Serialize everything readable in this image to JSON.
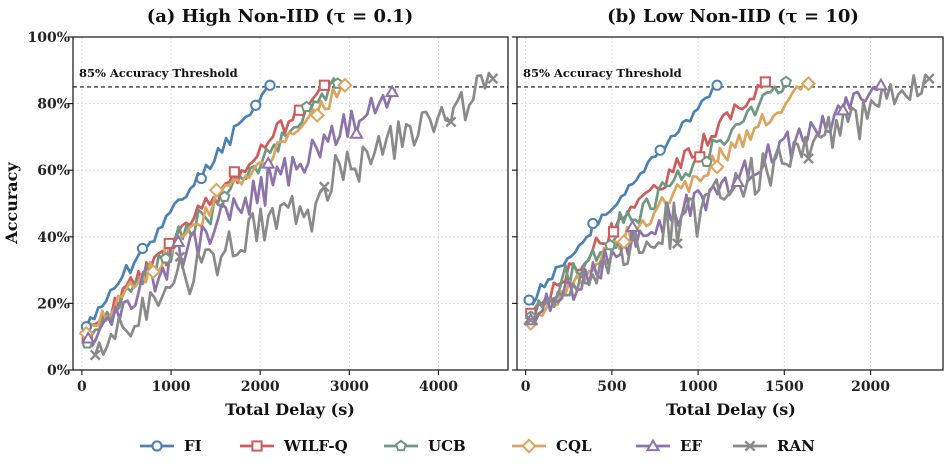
{
  "chart_data": [
    {
      "type": "line",
      "title": "(a) High Non-IID (τ = 0.1)",
      "xlabel": "Total Delay (s)",
      "ylabel": "Accuracy",
      "xlim": [
        -100,
        4780
      ],
      "ylim": [
        0,
        100
      ],
      "xticks": [
        0,
        1000,
        2000,
        3000,
        4000
      ],
      "xtick_labels": [
        "0",
        "1000",
        "2000",
        "3000",
        "4000"
      ],
      "yticks": [
        0,
        20,
        40,
        60,
        80,
        100
      ],
      "ytick_labels": [
        "0%",
        "20%",
        "40%",
        "60%",
        "80%",
        "100%"
      ],
      "threshold": 85,
      "threshold_label": "85% Accuracy Threshold",
      "grid": true,
      "series": [
        {
          "name": "FI",
          "x_end": 2110,
          "start": 13,
          "end": 85.5,
          "noise": 1.3,
          "curve": 0.98,
          "seed": 11,
          "markers": [
            [
              50,
              13
            ],
            [
              680,
              36.5
            ],
            [
              1340,
              57.5
            ],
            [
              1950,
              79.5
            ],
            [
              2110,
              85.5
            ]
          ]
        },
        {
          "name": "WILF-Q",
          "x_end": 2720,
          "start": 10,
          "end": 85.5,
          "noise": 2.2,
          "curve": 0.95,
          "seed": 23,
          "markers": [
            [
              60,
              10
            ],
            [
              980,
              38
            ],
            [
              1710,
              59.5
            ],
            [
              2440,
              78
            ],
            [
              2720,
              85.5
            ]
          ]
        },
        {
          "name": "UCB",
          "x_end": 2870,
          "start": 8,
          "end": 86,
          "noise": 2.4,
          "curve": 0.93,
          "seed": 37,
          "markers": [
            [
              60,
              8
            ],
            [
              940,
              33.5
            ],
            [
              1600,
              52
            ],
            [
              2520,
              79
            ],
            [
              2870,
              86
            ]
          ]
        },
        {
          "name": "CQL",
          "x_end": 2950,
          "start": 10,
          "end": 85.5,
          "noise": 2.5,
          "curve": 0.93,
          "seed": 41,
          "markers": [
            [
              50,
              11
            ],
            [
              800,
              29.5
            ],
            [
              1510,
              54
            ],
            [
              2640,
              76.5
            ],
            [
              2950,
              85.5
            ]
          ]
        },
        {
          "name": "EF",
          "x_end": 3510,
          "start": 9,
          "end": 84,
          "noise": 3.4,
          "curve": 0.9,
          "seed": 53,
          "markers": [
            [
              70,
              9.5
            ],
            [
              1080,
              38.5
            ],
            [
              2090,
              62
            ],
            [
              3080,
              71
            ],
            [
              3480,
              83.5
            ]
          ]
        },
        {
          "name": "RAN",
          "x_end": 4610,
          "start": 5,
          "end": 87.5,
          "noise": 4.2,
          "curve": 0.88,
          "seed": 67,
          "markers": [
            [
              150,
              4.5
            ],
            [
              1100,
              34
            ],
            [
              2720,
              55
            ],
            [
              4140,
              74.5
            ],
            [
              4610,
              87.5
            ]
          ]
        }
      ]
    },
    {
      "type": "line",
      "title": "(b) Low Non-IID (τ = 10)",
      "xlabel": "Total Delay (s)",
      "ylabel": "",
      "xlim": [
        -50,
        2420
      ],
      "ylim": [
        0,
        100
      ],
      "xticks": [
        0,
        500,
        1000,
        1500,
        2000
      ],
      "xtick_labels": [
        "0",
        "500",
        "1000",
        "1500",
        "2000"
      ],
      "yticks": [
        0,
        20,
        40,
        60,
        80,
        100
      ],
      "ytick_labels": [
        "",
        "",
        "",
        "",
        "",
        ""
      ],
      "threshold": 85,
      "threshold_label": "85% Accuracy Threshold",
      "grid": true,
      "series": [
        {
          "name": "FI",
          "x_end": 1110,
          "start": 20,
          "end": 85.5,
          "noise": 0.8,
          "curve": 1.0,
          "seed": 71,
          "markers": [
            [
              20,
              21
            ],
            [
              390,
              44
            ],
            [
              780,
              66
            ],
            [
              1110,
              85.5
            ]
          ]
        },
        {
          "name": "WILF-Q",
          "x_end": 1390,
          "start": 17,
          "end": 86.5,
          "noise": 1.8,
          "curve": 0.97,
          "seed": 83,
          "markers": [
            [
              30,
              17
            ],
            [
              510,
              41.5
            ],
            [
              1010,
              64
            ],
            [
              1390,
              86.5
            ]
          ]
        },
        {
          "name": "UCB",
          "x_end": 1510,
          "start": 16,
          "end": 86.5,
          "noise": 2.0,
          "curve": 0.96,
          "seed": 89,
          "markers": [
            [
              30,
              16
            ],
            [
              490,
              37.5
            ],
            [
              1050,
              62.5
            ],
            [
              1510,
              86.5
            ]
          ]
        },
        {
          "name": "CQL",
          "x_end": 1640,
          "start": 14,
          "end": 86,
          "noise": 2.0,
          "curve": 0.95,
          "seed": 97,
          "markers": [
            [
              30,
              14
            ],
            [
              570,
              38.5
            ],
            [
              1110,
              61
            ],
            [
              1640,
              86
            ]
          ]
        },
        {
          "name": "EF",
          "x_end": 2060,
          "start": 15,
          "end": 85.5,
          "noise": 2.8,
          "curve": 0.92,
          "seed": 101,
          "markers": [
            [
              30,
              15
            ],
            [
              620,
              43
            ],
            [
              1230,
              56.5
            ],
            [
              1840,
              78
            ],
            [
              2060,
              85.5
            ]
          ]
        },
        {
          "name": "RAN",
          "x_end": 2340,
          "start": 15,
          "end": 87.5,
          "noise": 3.8,
          "curve": 0.88,
          "seed": 103,
          "markers": [
            [
              30,
              15
            ],
            [
              880,
              38
            ],
            [
              1640,
              63.5
            ],
            [
              2340,
              87.5
            ]
          ]
        }
      ]
    }
  ],
  "legend": [
    {
      "name": "FI",
      "color": "#4a82b4",
      "marker": "circle"
    },
    {
      "name": "WILF-Q",
      "color": "#cf5b5b",
      "marker": "square"
    },
    {
      "name": "UCB",
      "color": "#6f9882",
      "marker": "pentagon"
    },
    {
      "name": "CQL",
      "color": "#dba55f",
      "marker": "diamond"
    },
    {
      "name": "EF",
      "color": "#8c73ab",
      "marker": "triangle"
    },
    {
      "name": "RAN",
      "color": "#8a8a8a",
      "marker": "x"
    }
  ]
}
